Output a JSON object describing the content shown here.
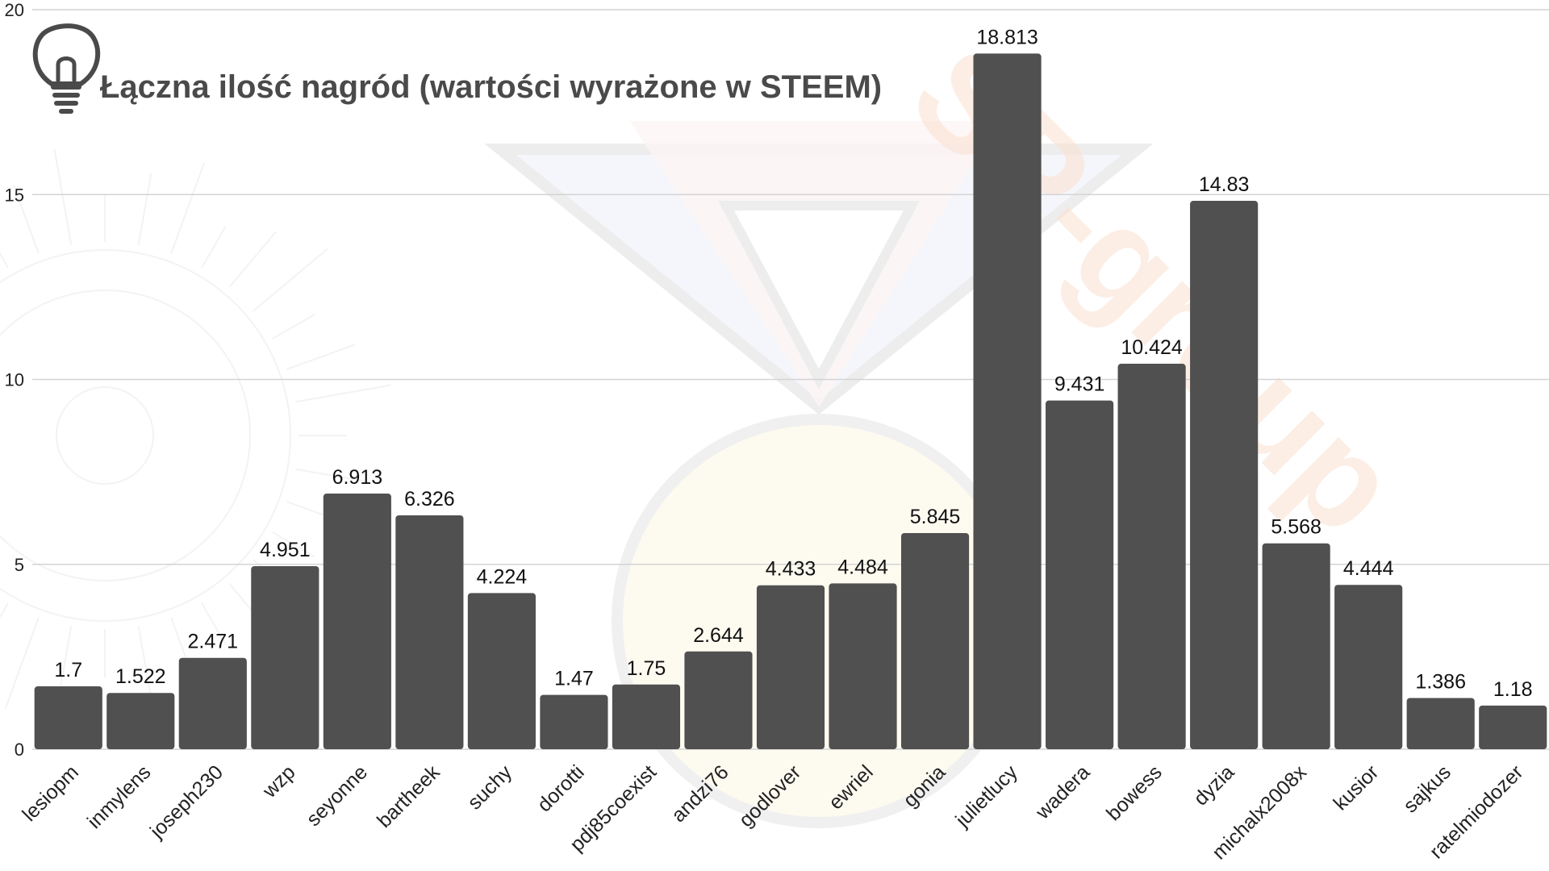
{
  "chart_data": {
    "type": "bar",
    "title": "Łączna ilość nagród (wartości wyrażone w STEEM)",
    "xlabel": "",
    "ylabel": "",
    "ylim": [
      0,
      20
    ],
    "yticks": [
      "0",
      "5",
      "10",
      "15",
      "20"
    ],
    "grid": true,
    "legend": "none",
    "categories": [
      "lesiopm",
      "inmylens",
      "joseph230",
      "wzp",
      "seyonne",
      "bartheek",
      "suchy",
      "dorotti",
      "pdj85coexist",
      "andzi76",
      "godlover",
      "ewriel",
      "gonia",
      "julietlucy",
      "wadera",
      "bowess",
      "dyzia",
      "michalx2008x",
      "kusior",
      "sajkus",
      "ratelmiodozer"
    ],
    "values": [
      1.7,
      1.522,
      2.471,
      4.951,
      6.913,
      6.326,
      4.224,
      1.47,
      1.75,
      2.644,
      4.433,
      4.484,
      5.845,
      18.813,
      9.431,
      10.424,
      14.83,
      5.568,
      4.444,
      1.386,
      1.18
    ],
    "value_labels": [
      "1.7",
      "1.522",
      "2.471",
      "4.951",
      "6.913",
      "6.326",
      "4.224",
      "1.47",
      "1.75",
      "2.644",
      "4.433",
      "4.484",
      "5.845",
      "18.813",
      "9.431",
      "10.424",
      "14.83",
      "5.568",
      "4.444",
      "1.386",
      "1.18"
    ],
    "colors": {
      "bar": "#505050",
      "grid": "#d4d4d4",
      "title": "#4a4a4a",
      "icon": "#4a4a4a"
    },
    "icon": "lightbulb-icon"
  },
  "watermark": {
    "text": "SP-group",
    "icon": "medal-watermark"
  }
}
